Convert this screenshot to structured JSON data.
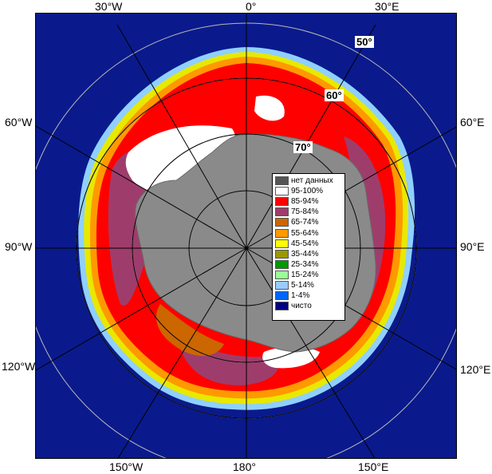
{
  "map": {
    "ocean_color": "#0a1a8c",
    "land_color": "#8a8a8a",
    "grid_color": "#b8b8b8"
  },
  "lon_labels": {
    "top_30w": "30°W",
    "top_0": "0°",
    "top_30e": "30°E",
    "left_60w": "60°W",
    "left_90w": "90°W",
    "left_120w": "120°W",
    "right_60e": "60°E",
    "right_90e": "90°E",
    "right_120e": "120°E",
    "bottom_150w": "150°W",
    "bottom_180": "180°",
    "bottom_150e": "150°E"
  },
  "lat_labels": {
    "lat_50": "50°",
    "lat_60": "60°",
    "lat_70": "70°"
  },
  "legend": {
    "items": [
      {
        "label": "нет данных",
        "color": "#555555"
      },
      {
        "label": "95-100%",
        "color": "#ffffff"
      },
      {
        "label": "85-94%",
        "color": "#ff0000"
      },
      {
        "label": "75-84%",
        "color": "#9e3d6b"
      },
      {
        "label": "65-74%",
        "color": "#cc6600"
      },
      {
        "label": "55-64%",
        "color": "#ff9900"
      },
      {
        "label": "45-54%",
        "color": "#ffff00"
      },
      {
        "label": "35-44%",
        "color": "#999900"
      },
      {
        "label": "25-34%",
        "color": "#009900"
      },
      {
        "label": "15-24%",
        "color": "#99ff99"
      },
      {
        "label": "5-14%",
        "color": "#99ccff"
      },
      {
        "label": "1-4%",
        "color": "#0066ff"
      },
      {
        "label": "чисто",
        "color": "#000080"
      }
    ]
  }
}
